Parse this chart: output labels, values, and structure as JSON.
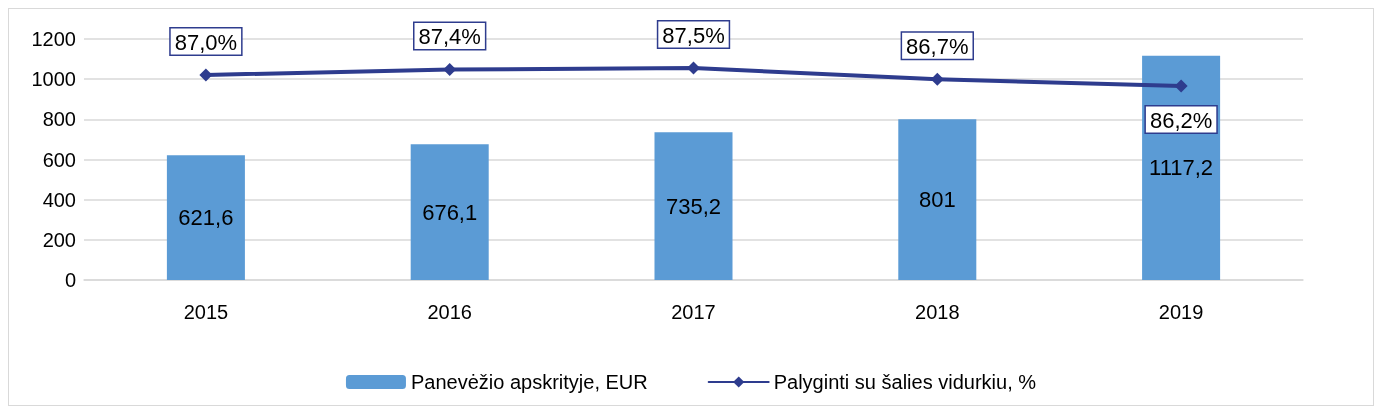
{
  "chart_data": {
    "type": "bar",
    "categories": [
      "2015",
      "2016",
      "2017",
      "2018",
      "2019"
    ],
    "series": [
      {
        "name": "Panevėžio apskrityje, EUR",
        "color": "#5b9bd5",
        "values": [
          621.6,
          676.1,
          735.2,
          801,
          1117.2
        ],
        "value_labels": [
          "621,6",
          "676,1",
          "735,2",
          "801",
          "1117,2"
        ]
      },
      {
        "name": "Palyginti su šalies vidurkiu, %",
        "type": "line",
        "axis": "y2",
        "color": "#2e3c8e",
        "marker": "diamond",
        "values": [
          87.0,
          87.4,
          87.5,
          86.7,
          86.2
        ],
        "value_labels": [
          "87,0%",
          "87,4%",
          "87,5%",
          "86,7%",
          "86,2%"
        ]
      }
    ],
    "ylim": [
      0,
      1200
    ],
    "yticks": [
      0,
      200,
      400,
      600,
      800,
      1000,
      1200
    ],
    "y2lim": [
      72.2,
      89.6
    ],
    "grid": "y",
    "legend": "bottom"
  }
}
